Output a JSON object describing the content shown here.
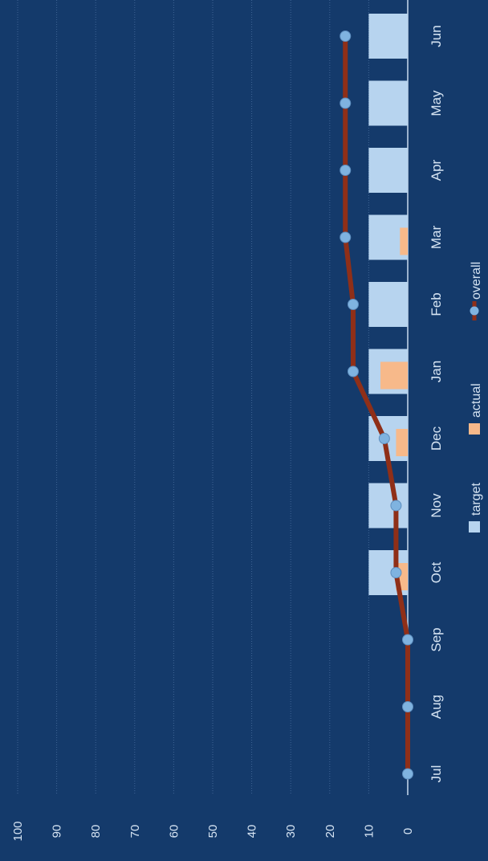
{
  "chart_data": {
    "type": "bar",
    "categories": [
      "Jul",
      "Aug",
      "Sep",
      "Oct",
      "Nov",
      "Dec",
      "Jan",
      "Feb",
      "Mar",
      "Apr",
      "May",
      "Jun"
    ],
    "series": [
      {
        "name": "target",
        "type": "bar",
        "color": "#b7d4ef",
        "values": [
          0,
          0,
          0,
          10,
          10,
          10,
          10,
          10,
          10,
          10,
          10,
          10
        ]
      },
      {
        "name": "actual",
        "type": "bar",
        "color": "#f7b98a",
        "values": [
          0,
          0,
          0,
          3,
          0,
          3,
          7,
          0,
          2,
          0,
          0,
          0
        ]
      },
      {
        "name": "overall",
        "type": "line",
        "color": "#8f2f18",
        "marker_color": "#7fb3e0",
        "values": [
          0,
          0,
          0,
          3,
          3,
          6,
          14,
          14,
          16,
          16,
          16,
          16
        ]
      }
    ],
    "y_ticks": [
      "0",
      "10",
      "20",
      "30",
      "40",
      "50",
      "60",
      "70",
      "80",
      "90",
      "100"
    ],
    "ylim": [
      0,
      100
    ],
    "grid": true,
    "legend": [
      "target",
      "actual",
      "overall"
    ],
    "orientation": "rotated-90-clockwise"
  }
}
